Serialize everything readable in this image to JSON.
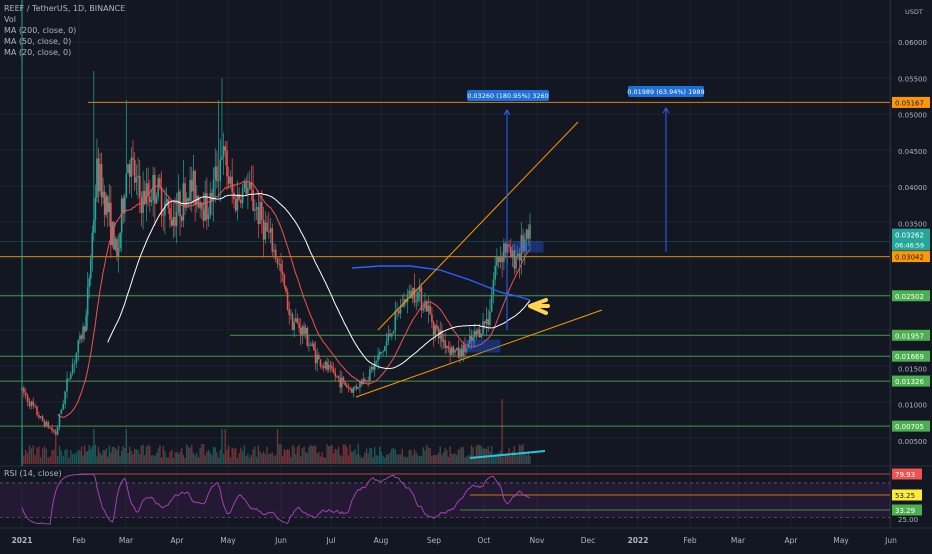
{
  "legend": {
    "symbol": "REEF / TetherUS, 1D, BINANCE",
    "vol": "Vol",
    "ma200": "MA (200, close, 0)",
    "ma50": "MA (50, close, 0)",
    "ma20": "MA (20, close, 0)"
  },
  "rsi_label": "RSI (14, close)",
  "colors": {
    "background": "#131722",
    "bull": "#26a69a",
    "bear": "#ef5350",
    "ma200": "#2962ff",
    "ma50": "#ffffff",
    "ma20": "#ef5350",
    "orange": "#ff9800",
    "green": "#4caf50",
    "rsi": "#9c27b0",
    "blue_tag": "#1e6fd9"
  },
  "chart_data": {
    "type": "candlestick",
    "title": "REEF / TetherUS, 1D, BINANCE",
    "x_tick_labels": [
      "2021",
      "Feb",
      "Mar",
      "Apr",
      "May",
      "Jun",
      "Jul",
      "Aug",
      "Sep",
      "Oct",
      "Nov",
      "Dec",
      "2022",
      "Feb",
      "Mar",
      "Apr",
      "May",
      "Jun"
    ],
    "y_axis_labels": [
      "0.06000",
      "0.05500",
      "0.05000",
      "0.04500",
      "0.04000",
      "0.03500",
      "0.01500",
      "0.01000",
      "0.00500"
    ],
    "y_axis_unit": "USDT",
    "ylim": [
      0,
      0.0655
    ],
    "price_levels": [
      {
        "label": "0.05167",
        "value": 0.05167,
        "color": "#ff9800"
      },
      {
        "label": "0.03042",
        "value": 0.03042,
        "color": "#ff9800"
      },
      {
        "label": "0.02502",
        "value": 0.02502,
        "color": "#4caf50"
      },
      {
        "label": "0.01957",
        "value": 0.01957,
        "color": "#4caf50"
      },
      {
        "label": "0.01669",
        "value": 0.01669,
        "color": "#4caf50"
      },
      {
        "label": "0.01326",
        "value": 0.01326,
        "color": "#4caf50"
      },
      {
        "label": "0.00705",
        "value": 0.00705,
        "color": "#4caf50"
      }
    ],
    "current_price": {
      "label": "0.03262",
      "countdown": "06:46:59",
      "value": 0.03262
    },
    "measurements": [
      {
        "label": "0.03260 (180.95%) 3260"
      },
      {
        "label": "0.01989 (63.94%) 1989"
      }
    ],
    "close_series_monthly": [
      {
        "month": "2021-01",
        "close": 0.012
      },
      {
        "month": "2021-02",
        "close": 0.038
      },
      {
        "month": "2021-03",
        "close": 0.04
      },
      {
        "month": "2021-04",
        "close": 0.037
      },
      {
        "month": "2021-05",
        "close": 0.035
      },
      {
        "month": "2021-06",
        "close": 0.022
      },
      {
        "month": "2021-07",
        "close": 0.014
      },
      {
        "month": "2021-08",
        "close": 0.024
      },
      {
        "month": "2021-09",
        "close": 0.022
      },
      {
        "month": "2021-10",
        "close": 0.032
      }
    ],
    "rsi": {
      "values_shown": [
        "79.93",
        "53.25",
        "33.29"
      ],
      "bottom_tick": "25.00"
    }
  }
}
